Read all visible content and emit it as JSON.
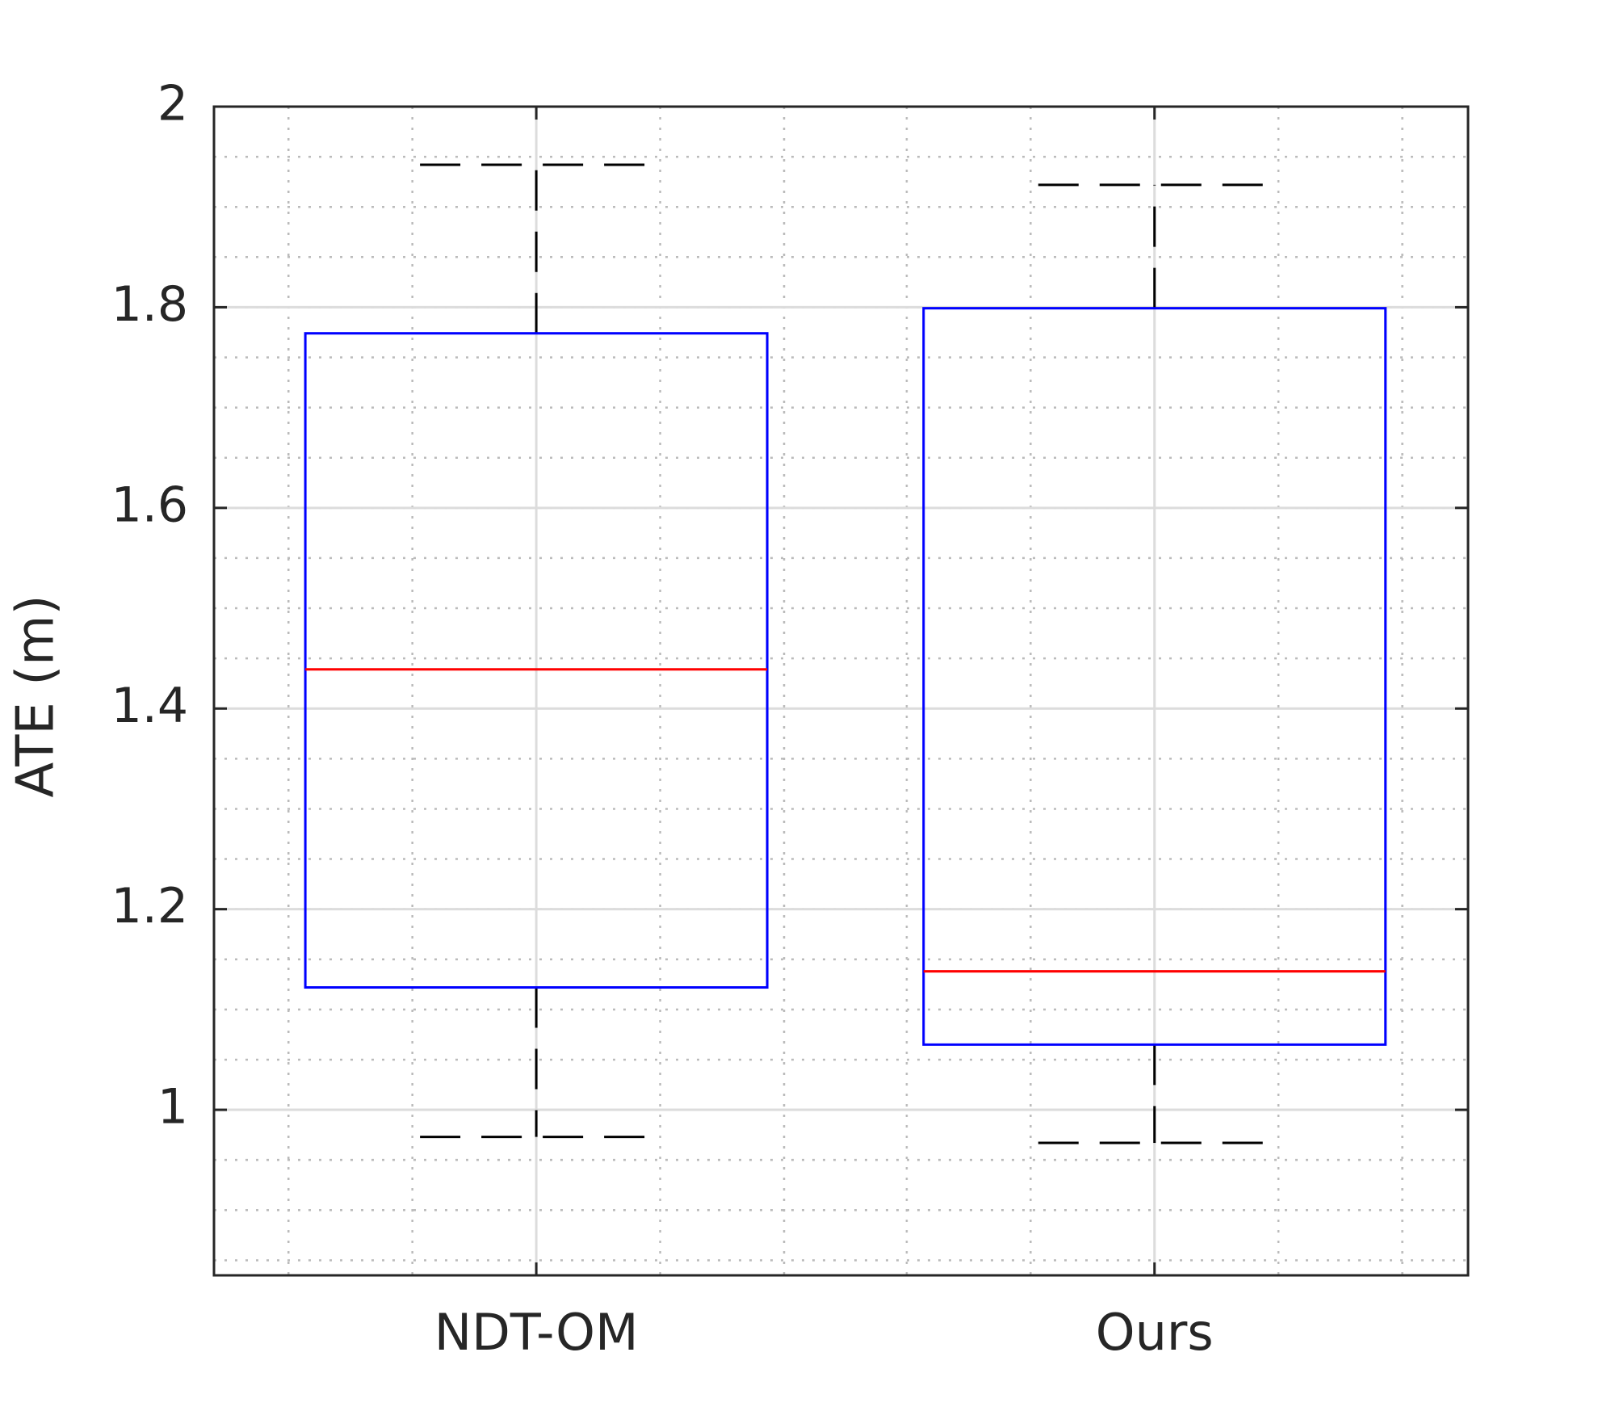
{
  "chart_data": {
    "type": "box",
    "y_label": "ATE (m)",
    "categories": [
      "NDT-OM",
      "Ours"
    ],
    "boxes": [
      {
        "low": 0.973,
        "q1": 1.122,
        "median": 1.439,
        "q3": 1.774,
        "high": 1.942
      },
      {
        "low": 0.967,
        "q1": 1.065,
        "median": 1.138,
        "q3": 1.799,
        "high": 1.922
      }
    ],
    "box_color": "#0000ff",
    "median_color": "#ff0000",
    "whisker_color": "#000000",
    "ylim": [
      0.835,
      2
    ],
    "yticks": [
      1,
      1.2,
      1.4,
      1.6,
      1.8,
      2
    ],
    "grid": true,
    "minor_grid": true
  }
}
